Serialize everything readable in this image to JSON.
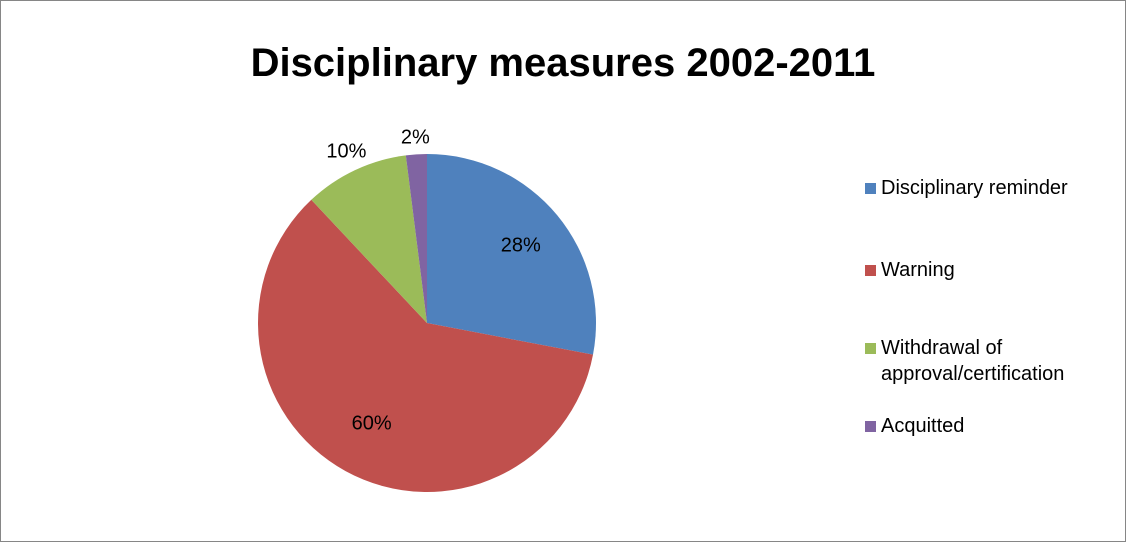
{
  "chart_data": {
    "type": "pie",
    "title": "Disciplinary measures 2002-2011",
    "categories": [
      "Disciplinary reminder",
      "Warning",
      "Withdrawal of approval/certification",
      "Acquitted"
    ],
    "values": [
      28,
      60,
      10,
      2
    ],
    "labels": [
      "28%",
      "60%",
      "10%",
      "2%"
    ],
    "colors": [
      "#4F81BD",
      "#C0504D",
      "#9BBB59",
      "#8064A2"
    ],
    "legend_position": "right",
    "start_angle": "12 o'clock, clockwise"
  }
}
